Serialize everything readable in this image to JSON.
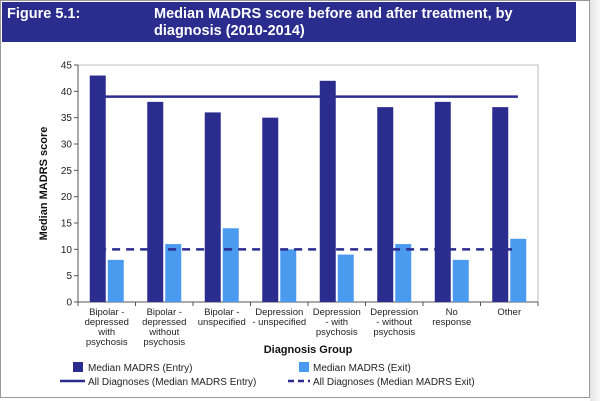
{
  "figure": {
    "label": "Figure 5.1:",
    "title": "Median MADRS score before and after treatment, by diagnosis (2010-2014)"
  },
  "colors": {
    "title_bg": "#2b2d8e",
    "entry": "#2b2d8e",
    "exit": "#4a9af0",
    "avg_line": "#2b2d8e"
  },
  "chart_data": {
    "type": "bar",
    "title": "Median MADRS score before and after treatment, by diagnosis (2010-2014)",
    "xlabel": "Diagnosis Group",
    "ylabel": "Median MADRS score",
    "ylim": [
      0,
      45
    ],
    "yticks": [
      0,
      5,
      10,
      15,
      20,
      25,
      30,
      35,
      40,
      45
    ],
    "grid": false,
    "legend_position": "bottom",
    "categories": [
      [
        "Bipolar -",
        "depressed",
        "with",
        "psychosis"
      ],
      [
        "Bipolar -",
        "depressed",
        "without",
        "psychosis"
      ],
      [
        "Bipolar -",
        "unspecified"
      ],
      [
        "Depression",
        "- unspecified"
      ],
      [
        "Depression",
        "- with",
        "psychosis"
      ],
      [
        "Depression",
        "- without",
        "psychosis"
      ],
      [
        "No",
        "response"
      ],
      [
        "Other"
      ]
    ],
    "series": [
      {
        "name": "Median MADRS (Entry)",
        "type": "bar",
        "values": [
          43,
          38,
          36,
          35,
          42,
          37,
          38,
          37
        ]
      },
      {
        "name": "Median MADRS (Exit)",
        "type": "bar",
        "values": [
          8,
          11,
          14,
          10,
          9,
          11,
          8,
          12
        ]
      }
    ],
    "reference_lines": [
      {
        "name": "All Diagnoses (Median MADRS Entry)",
        "value": 39,
        "style": "solid"
      },
      {
        "name": "All Diagnoses (Median MADRS Exit)",
        "value": 10,
        "style": "dashed"
      }
    ]
  }
}
